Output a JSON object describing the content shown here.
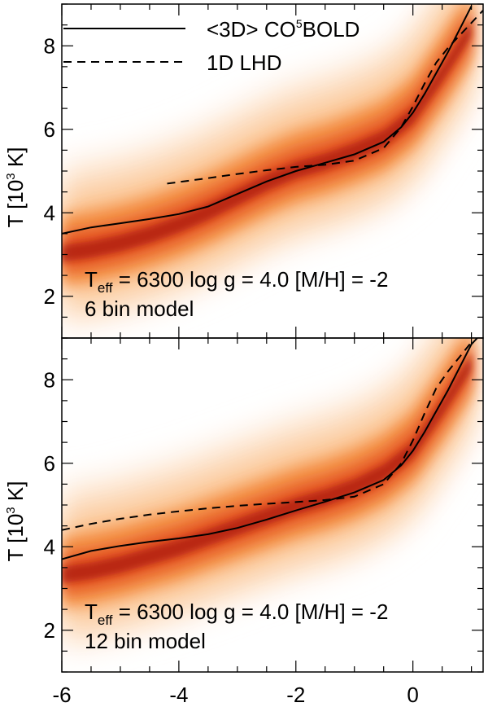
{
  "chart_data": {
    "type": "line",
    "shared_xaxis": {
      "xlim": [
        -6,
        1.2
      ],
      "major_ticks": [
        -6,
        -4,
        -2,
        0
      ],
      "tick_labels": [
        "-6",
        "-4",
        "-2",
        "0"
      ],
      "minor_step": 0.5
    },
    "legend": {
      "placement": "top-right",
      "entries": [
        {
          "prefix": "<3D> CO",
          "superscript": "5",
          "suffix": "BOLD",
          "style": "solid"
        },
        {
          "prefix": "1D LHD",
          "superscript": "",
          "suffix": "",
          "style": "dashed"
        }
      ]
    },
    "panels": [
      {
        "ylabel_prefix": "T [10",
        "ylabel_superscript": "3",
        "ylabel_suffix": " K]",
        "ylim": [
          1,
          9
        ],
        "major_ticks": [
          2,
          4,
          6,
          8
        ],
        "tick_labels": [
          "2",
          "4",
          "6",
          "8"
        ],
        "minor_step": 0.5,
        "annotation_line1": {
          "teff_T": "T",
          "teff_sub": "eff",
          "rest": " = 6300 log g = 4.0 [M/H] = -2"
        },
        "annotation_line2": "6 bin model",
        "series": [
          {
            "name": "<3D> CO5BOLD",
            "style": "solid",
            "x": [
              -6.0,
              -5.5,
              -5.0,
              -4.5,
              -4.0,
              -3.5,
              -3.0,
              -2.5,
              -2.0,
              -1.5,
              -1.0,
              -0.5,
              -0.2,
              0.0,
              0.2,
              0.4,
              0.6,
              0.8,
              1.0
            ],
            "y": [
              3.5,
              3.65,
              3.75,
              3.85,
              3.97,
              4.15,
              4.45,
              4.75,
              5.0,
              5.2,
              5.4,
              5.7,
              6.05,
              6.4,
              6.85,
              7.35,
              7.85,
              8.4,
              8.95
            ]
          },
          {
            "name": "1D LHD",
            "style": "dashed",
            "x": [
              -4.2,
              -3.5,
              -3.0,
              -2.5,
              -2.0,
              -1.5,
              -1.0,
              -0.5,
              -0.2,
              0.0,
              0.2,
              0.4,
              0.6,
              0.8,
              1.0,
              1.2
            ],
            "y": [
              4.7,
              4.83,
              4.93,
              5.02,
              5.1,
              5.15,
              5.25,
              5.55,
              6.05,
              6.55,
              7.1,
              7.6,
              7.95,
              8.25,
              8.55,
              8.85
            ]
          }
        ],
        "density_ridge": [
          {
            "x": -6.0,
            "y": 3.0
          },
          {
            "x": -5.5,
            "y": 3.1
          },
          {
            "x": -5.0,
            "y": 3.25
          },
          {
            "x": -4.5,
            "y": 3.45
          },
          {
            "x": -4.0,
            "y": 3.7
          },
          {
            "x": -3.5,
            "y": 4.0
          },
          {
            "x": -3.0,
            "y": 4.35
          },
          {
            "x": -2.5,
            "y": 4.7
          },
          {
            "x": -2.0,
            "y": 5.0
          },
          {
            "x": -1.5,
            "y": 5.2
          },
          {
            "x": -1.0,
            "y": 5.45
          },
          {
            "x": -0.5,
            "y": 5.75
          },
          {
            "x": 0.0,
            "y": 6.3
          },
          {
            "x": 0.5,
            "y": 7.3
          },
          {
            "x": 1.0,
            "y": 8.4
          }
        ]
      },
      {
        "ylabel_prefix": "T [10",
        "ylabel_superscript": "3",
        "ylabel_suffix": " K]",
        "ylim": [
          1,
          9
        ],
        "major_ticks": [
          2,
          4,
          6,
          8
        ],
        "tick_labels": [
          "2",
          "4",
          "6",
          "8"
        ],
        "minor_step": 0.5,
        "annotation_line1": {
          "teff_T": "T",
          "teff_sub": "eff",
          "rest": " = 6300 log g = 4.0 [M/H] = -2"
        },
        "annotation_line2": "12 bin model",
        "series": [
          {
            "name": "<3D> CO5BOLD",
            "style": "solid",
            "x": [
              -6.0,
              -5.5,
              -5.0,
              -4.5,
              -4.0,
              -3.5,
              -3.0,
              -2.5,
              -2.0,
              -1.5,
              -1.0,
              -0.5,
              -0.2,
              0.0,
              0.2,
              0.4,
              0.6,
              0.8,
              1.0,
              1.1
            ],
            "y": [
              3.7,
              3.9,
              4.02,
              4.12,
              4.2,
              4.3,
              4.45,
              4.65,
              4.87,
              5.08,
              5.3,
              5.6,
              5.95,
              6.3,
              6.75,
              7.25,
              7.75,
              8.3,
              8.85,
              9.0
            ]
          },
          {
            "name": "1D LHD",
            "style": "dashed",
            "x": [
              -6.0,
              -5.5,
              -5.0,
              -4.5,
              -4.0,
              -3.5,
              -3.0,
              -2.5,
              -2.0,
              -1.5,
              -1.0,
              -0.5,
              -0.2,
              0.0,
              0.2,
              0.4,
              0.6,
              0.8,
              1.0
            ],
            "y": [
              4.4,
              4.55,
              4.67,
              4.77,
              4.85,
              4.92,
              4.98,
              5.03,
              5.07,
              5.12,
              5.2,
              5.5,
              6.0,
              6.55,
              7.2,
              7.8,
              8.2,
              8.55,
              8.9
            ]
          }
        ],
        "density_ridge": [
          {
            "x": -6.0,
            "y": 3.3
          },
          {
            "x": -5.5,
            "y": 3.4
          },
          {
            "x": -5.0,
            "y": 3.55
          },
          {
            "x": -4.5,
            "y": 3.75
          },
          {
            "x": -4.0,
            "y": 3.95
          },
          {
            "x": -3.5,
            "y": 4.2
          },
          {
            "x": -3.0,
            "y": 4.45
          },
          {
            "x": -2.5,
            "y": 4.7
          },
          {
            "x": -2.0,
            "y": 4.95
          },
          {
            "x": -1.5,
            "y": 5.15
          },
          {
            "x": -1.0,
            "y": 5.4
          },
          {
            "x": -0.5,
            "y": 5.75
          },
          {
            "x": 0.0,
            "y": 6.3
          },
          {
            "x": 0.5,
            "y": 7.3
          },
          {
            "x": 1.0,
            "y": 8.4
          }
        ]
      }
    ]
  }
}
